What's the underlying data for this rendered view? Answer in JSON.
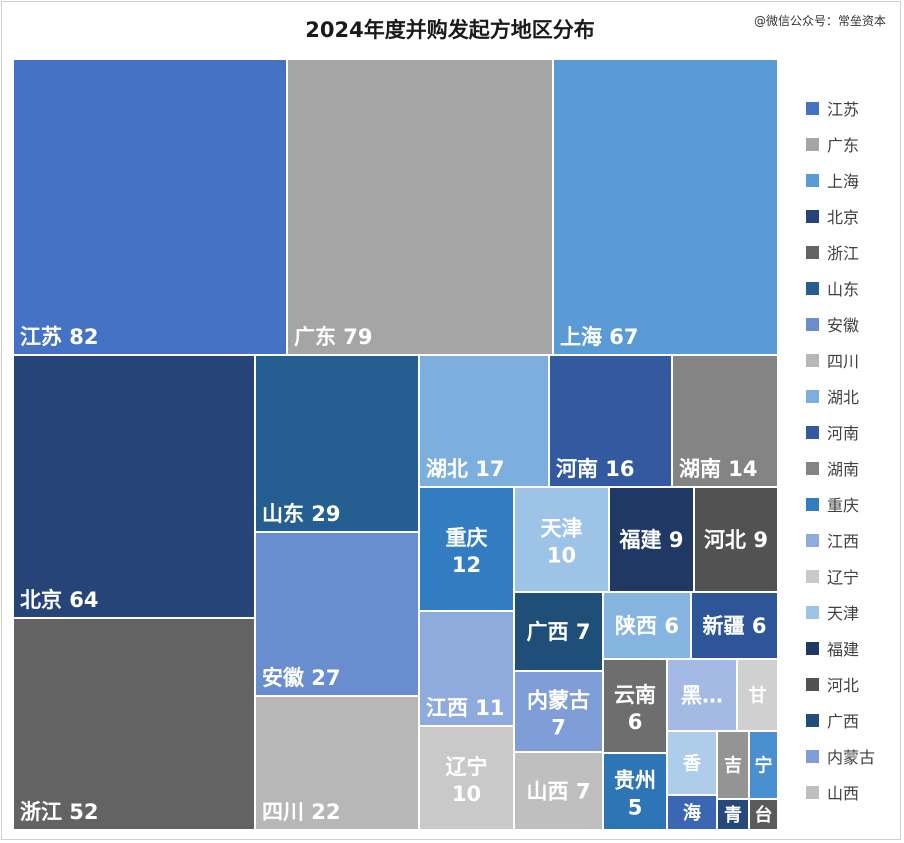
{
  "watermark": "@微信公众号：常垒资本",
  "chart_data": {
    "type": "treemap",
    "title": "2024年度并购发起方地区分布",
    "legend_position": "right",
    "items": [
      {
        "name": "江苏",
        "value": 82,
        "color": "#4472C4",
        "label": "江苏 82"
      },
      {
        "name": "广东",
        "value": 79,
        "color": "#A5A5A5",
        "label": "广东 79"
      },
      {
        "name": "上海",
        "value": 67,
        "color": "#5B9BD5",
        "label": "上海 67"
      },
      {
        "name": "北京",
        "value": 64,
        "color": "#264478",
        "label": "北京 64"
      },
      {
        "name": "浙江",
        "value": 52,
        "color": "#636363",
        "label": "浙江 52"
      },
      {
        "name": "山东",
        "value": 29,
        "color": "#255E91",
        "label": "山东 29"
      },
      {
        "name": "安徽",
        "value": 27,
        "color": "#698ED0",
        "label": "安徽 27"
      },
      {
        "name": "四川",
        "value": 22,
        "color": "#B7B7B7",
        "label": "四川 22"
      },
      {
        "name": "湖北",
        "value": 17,
        "color": "#7CAFDD",
        "label": "湖北 17"
      },
      {
        "name": "河南",
        "value": 16,
        "color": "#335AA1",
        "label": "河南 16"
      },
      {
        "name": "湖南",
        "value": 14,
        "color": "#848484",
        "label": "湖南 14"
      },
      {
        "name": "重庆",
        "value": 12,
        "color": "#327DC2",
        "label": "重庆 12"
      },
      {
        "name": "江西",
        "value": 11,
        "color": "#8FAADC",
        "label": "江西 11"
      },
      {
        "name": "辽宁",
        "value": 10,
        "color": "#C9C9C9",
        "label": "辽宁 10"
      },
      {
        "name": "天津",
        "value": 10,
        "color": "#9DC3E6",
        "label": "天津 10"
      },
      {
        "name": "福建",
        "value": 9,
        "color": "#203864",
        "label": "福建 9"
      },
      {
        "name": "河北",
        "value": 9,
        "color": "#525252",
        "label": "河北 9"
      },
      {
        "name": "广西",
        "value": 7,
        "color": "#1F4E79",
        "label": "广西 7"
      },
      {
        "name": "内蒙古",
        "value": 7,
        "color": "#7F9ED7",
        "label": "内蒙古 7"
      },
      {
        "name": "山西",
        "value": 7,
        "color": "#BFBFBF",
        "label": "山西 7"
      },
      {
        "name": "陕西",
        "value": 6,
        "color": "#85B4E0",
        "label": "陕西 6"
      },
      {
        "name": "新疆",
        "value": 6,
        "color": "#2E5597",
        "label": "新疆 6"
      },
      {
        "name": "云南",
        "value": 6,
        "color": "#6E6E6E",
        "label": "云南 6"
      },
      {
        "name": "贵州",
        "value": 5,
        "color": "#2E75B6",
        "label": "贵州 5"
      },
      {
        "name": "黑龙江",
        "value": 4,
        "color": "#A4B9E3",
        "label": "黑…"
      },
      {
        "name": "甘肃",
        "value": 2,
        "color": "#D0D0D0",
        "label": "甘"
      },
      {
        "name": "香港",
        "value": 2,
        "color": "#ADCDEB",
        "label": "香"
      },
      {
        "name": "海南",
        "value": 2,
        "color": "#3A66B4",
        "label": "海"
      },
      {
        "name": "吉林",
        "value": 2,
        "color": "#949494",
        "label": "吉"
      },
      {
        "name": "青海",
        "value": 1,
        "color": "#26497A",
        "label": "青"
      },
      {
        "name": "宁夏",
        "value": 2,
        "color": "#4A8FD0",
        "label": "宁"
      },
      {
        "name": "台湾",
        "value": 1,
        "color": "#5A5A5A",
        "label": "台"
      }
    ],
    "legend": [
      {
        "label": "江苏",
        "color": "#4472C4"
      },
      {
        "label": "广东",
        "color": "#A5A5A5"
      },
      {
        "label": "上海",
        "color": "#5B9BD5"
      },
      {
        "label": "北京",
        "color": "#264478"
      },
      {
        "label": "浙江",
        "color": "#636363"
      },
      {
        "label": "山东",
        "color": "#255E91"
      },
      {
        "label": "安徽",
        "color": "#698ED0"
      },
      {
        "label": "四川",
        "color": "#B7B7B7"
      },
      {
        "label": "湖北",
        "color": "#7CAFDD"
      },
      {
        "label": "河南",
        "color": "#335AA1"
      },
      {
        "label": "湖南",
        "color": "#848484"
      },
      {
        "label": "重庆",
        "color": "#327DC2"
      },
      {
        "label": "江西",
        "color": "#8FAADC"
      },
      {
        "label": "辽宁",
        "color": "#C9C9C9"
      },
      {
        "label": "天津",
        "color": "#9DC3E6"
      },
      {
        "label": "福建",
        "color": "#203864"
      },
      {
        "label": "河北",
        "color": "#525252"
      },
      {
        "label": "广西",
        "color": "#1F4E79"
      },
      {
        "label": "内蒙古",
        "color": "#7F9ED7"
      },
      {
        "label": "山西",
        "color": "#BFBFBF"
      }
    ]
  }
}
